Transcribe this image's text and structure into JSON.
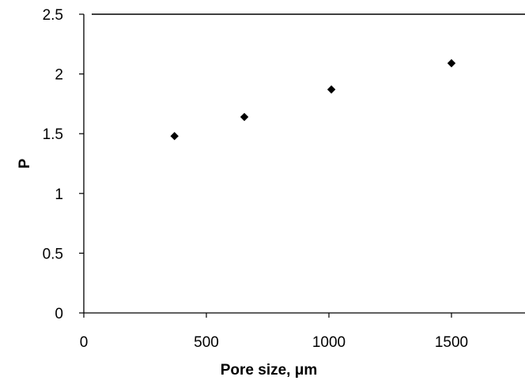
{
  "chart_data": {
    "type": "scatter",
    "title": "",
    "xlabel": "Pore size, μm",
    "ylabel": "P",
    "x": [
      370,
      655,
      1010,
      1500
    ],
    "y": [
      1.48,
      1.64,
      1.87,
      2.09
    ],
    "xlim": [
      0,
      1800
    ],
    "ylim": [
      0,
      2.5
    ],
    "x_ticks": [
      0,
      500,
      1000,
      1500
    ],
    "x_tick_labels": [
      "0",
      "500",
      "1000",
      "1500"
    ],
    "y_ticks": [
      0,
      0.5,
      1,
      1.5,
      2,
      2.5
    ],
    "y_tick_labels": [
      "0",
      "0.5",
      "1",
      "1.5",
      "2",
      "2.5"
    ],
    "grid": false,
    "legend": false,
    "marker": "diamond",
    "colors": {
      "marker": "#000000",
      "axis": "#000000",
      "background": "#ffffff"
    }
  }
}
